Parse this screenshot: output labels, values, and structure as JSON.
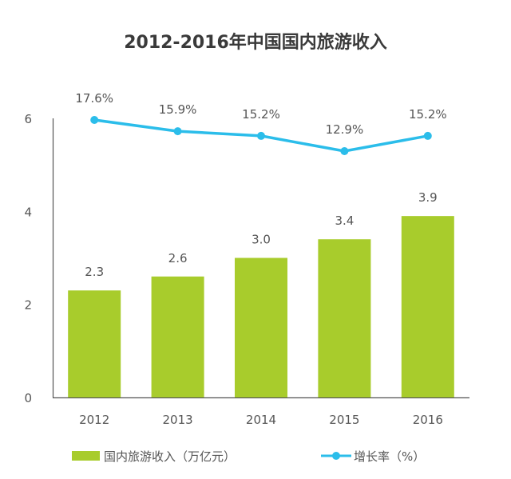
{
  "chart_data": {
    "type": "bar",
    "title": "2012-2016年中国国内旅游收入",
    "categories": [
      "2012",
      "2013",
      "2014",
      "2015",
      "2016"
    ],
    "ylim": [
      0,
      6
    ],
    "yticks": [
      "0",
      "2",
      "4",
      "6"
    ],
    "grid": false,
    "legend_placement": "bottom",
    "series": [
      {
        "name": "国内旅游收入（万亿元）",
        "type": "bar",
        "color": "#a8cc2c",
        "values": [
          2.3,
          2.6,
          3.0,
          3.4,
          3.9
        ],
        "labels": [
          "2.3",
          "2.6",
          "3.0",
          "3.4",
          "3.9"
        ]
      },
      {
        "name": "增长率（%）",
        "type": "line",
        "color": "#2bbdea",
        "axis": "secondary-hidden",
        "values": [
          17.6,
          15.9,
          15.2,
          12.9,
          15.2
        ],
        "labels": [
          "17.6%",
          "15.9%",
          "15.2%",
          "12.9%",
          "15.2%"
        ]
      }
    ]
  }
}
